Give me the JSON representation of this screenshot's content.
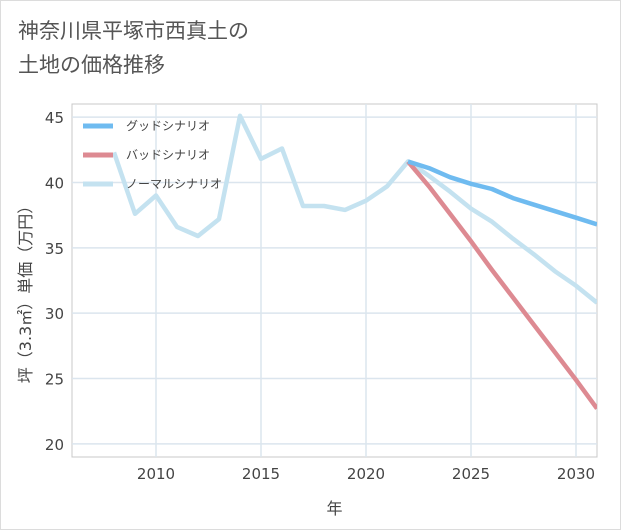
{
  "title_line1": "神奈川県平塚市西真土の",
  "title_line2": "土地の価格推移",
  "chart_data": {
    "type": "line",
    "title": "神奈川県平塚市西真土の土地の価格推移",
    "xlabel": "年",
    "ylabel": "坪（3.3㎡）単価（万円）",
    "xlim": [
      2006,
      2031
    ],
    "ylim": [
      19,
      46
    ],
    "xticks": [
      2010,
      2015,
      2020,
      2025,
      2030
    ],
    "yticks": [
      20,
      25,
      30,
      35,
      40,
      45
    ],
    "legend_position": "top-left",
    "series": [
      {
        "name": "グッドシナリオ",
        "color": "#6fbbf0",
        "x": [
          2022,
          2023,
          2024,
          2025,
          2026,
          2027,
          2028,
          2029,
          2030,
          2031
        ],
        "y": [
          41.6,
          41.1,
          40.4,
          39.9,
          39.5,
          38.8,
          38.3,
          37.8,
          37.3,
          36.8
        ]
      },
      {
        "name": "バッドシナリオ",
        "color": "#dd8a92",
        "x": [
          2022,
          2023,
          2024,
          2025,
          2026,
          2027,
          2028,
          2029,
          2030,
          2031
        ],
        "y": [
          41.6,
          39.7,
          37.6,
          35.5,
          33.3,
          31.2,
          29.1,
          27.0,
          24.9,
          22.7
        ]
      },
      {
        "name": "ノーマルシナリオ",
        "color": "#c4e2f0",
        "x": [
          2008,
          2009,
          2010,
          2011,
          2012,
          2013,
          2014,
          2015,
          2016,
          2017,
          2018,
          2019,
          2020,
          2021,
          2022,
          2023,
          2024,
          2025,
          2026,
          2027,
          2028,
          2029,
          2030,
          2031
        ],
        "y": [
          42.3,
          37.6,
          39.0,
          36.6,
          35.9,
          37.2,
          45.1,
          41.8,
          42.6,
          38.2,
          38.2,
          37.9,
          38.6,
          39.7,
          41.6,
          40.5,
          39.3,
          38.0,
          37.0,
          35.7,
          34.5,
          33.2,
          32.1,
          30.8
        ]
      }
    ]
  }
}
